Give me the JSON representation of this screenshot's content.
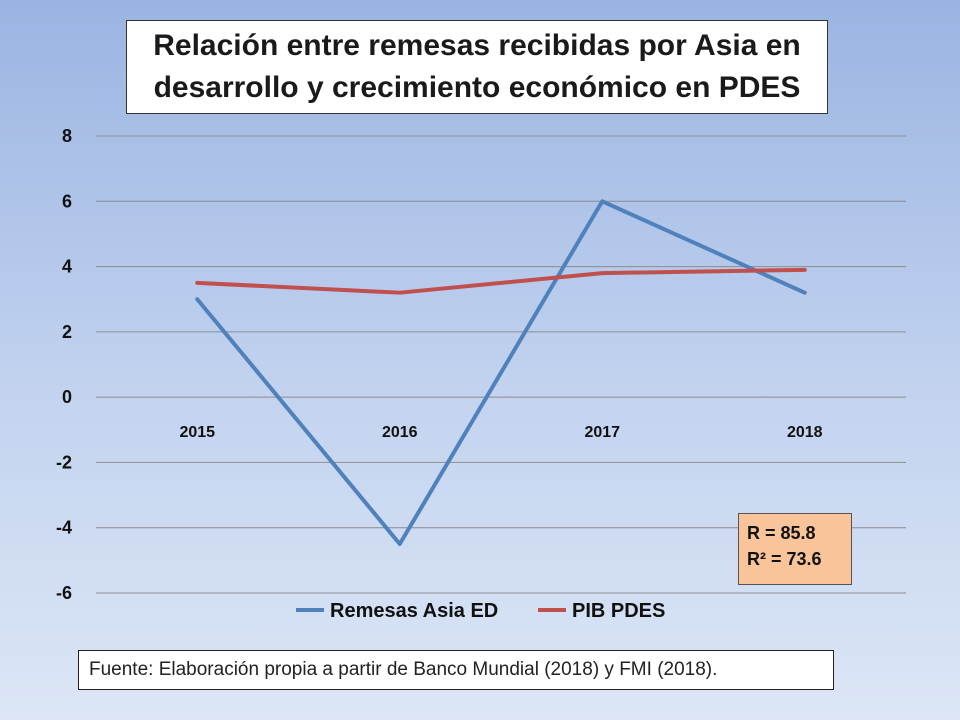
{
  "chart_data": {
    "type": "line",
    "title_lines": [
      "Relación entre remesas recibidas por Asia en",
      "desarrollo y crecimiento económico en PDES"
    ],
    "categories": [
      "2015",
      "2016",
      "2017",
      "2018"
    ],
    "series": [
      {
        "name": "Remesas Asia ED",
        "values": [
          3.0,
          -4.5,
          6.0,
          3.2
        ],
        "color": "#4f81bd"
      },
      {
        "name": "PIB PDES",
        "values": [
          3.5,
          3.2,
          3.8,
          3.9
        ],
        "color": "#c0504d"
      }
    ],
    "ylim": [
      -6,
      8
    ],
    "yticks": [
      "8",
      "6",
      "4",
      "2",
      "0",
      "-2",
      "-4",
      "-6"
    ],
    "grid": true,
    "legend_position": "bottom",
    "annotation": {
      "r_line": "R = 85.8",
      "r2_line": "R² =  73.6"
    },
    "source": "Fuente: Elaboración propia a partir de Banco Mundial (2018)  y FMI (2018)."
  }
}
